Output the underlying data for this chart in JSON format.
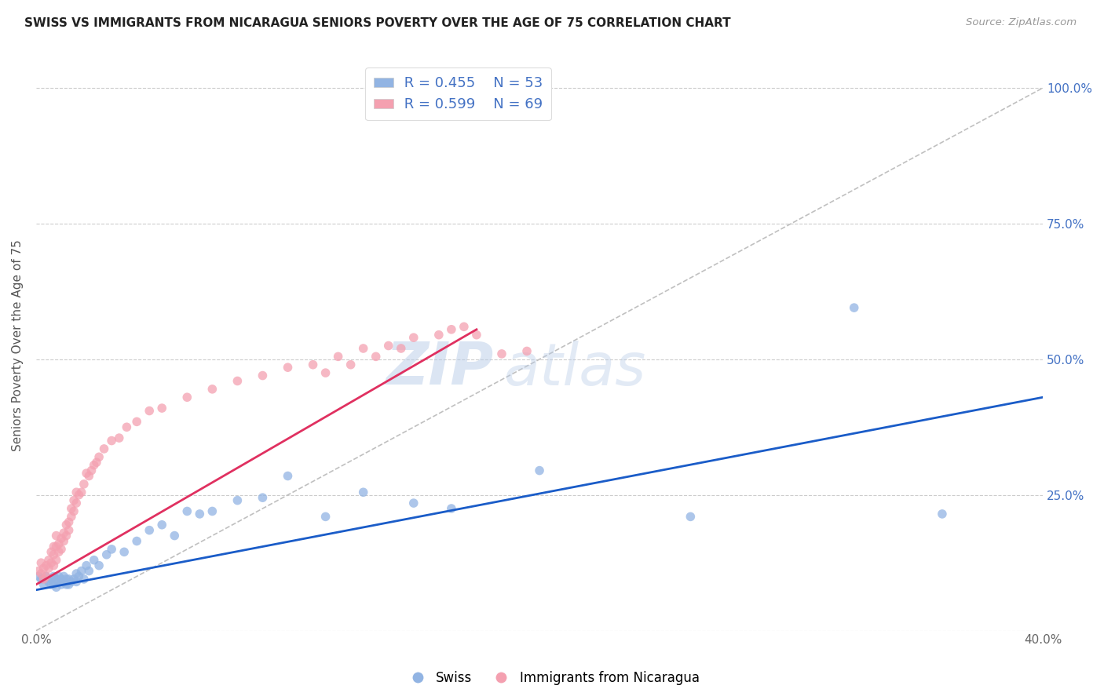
{
  "title": "SWISS VS IMMIGRANTS FROM NICARAGUA SENIORS POVERTY OVER THE AGE OF 75 CORRELATION CHART",
  "source": "Source: ZipAtlas.com",
  "ylabel": "Seniors Poverty Over the Age of 75",
  "xlim": [
    0.0,
    0.4
  ],
  "ylim": [
    0.0,
    1.05
  ],
  "xticks": [
    0.0,
    0.05,
    0.1,
    0.15,
    0.2,
    0.25,
    0.3,
    0.35,
    0.4
  ],
  "yticks": [
    0.0,
    0.25,
    0.5,
    0.75,
    1.0
  ],
  "legend_swiss_R": "R = 0.455",
  "legend_swiss_N": "N = 53",
  "legend_nic_R": "R = 0.599",
  "legend_nic_N": "N = 69",
  "swiss_color": "#92b4e3",
  "nic_color": "#f4a0b0",
  "swiss_line_color": "#1a5cc8",
  "nic_line_color": "#e03060",
  "diagonal_color": "#c0c0c0",
  "watermark_zip": "ZIP",
  "watermark_atlas": "atlas",
  "background_color": "#ffffff",
  "swiss_line_x0": 0.0,
  "swiss_line_y0": 0.075,
  "swiss_line_x1": 0.4,
  "swiss_line_y1": 0.43,
  "nic_line_x0": 0.0,
  "nic_line_y0": 0.085,
  "nic_line_x1": 0.175,
  "nic_line_y1": 0.555,
  "swiss_x": [
    0.001,
    0.002,
    0.003,
    0.004,
    0.005,
    0.006,
    0.006,
    0.007,
    0.007,
    0.008,
    0.008,
    0.009,
    0.009,
    0.01,
    0.01,
    0.011,
    0.011,
    0.012,
    0.012,
    0.013,
    0.013,
    0.014,
    0.015,
    0.016,
    0.016,
    0.017,
    0.018,
    0.019,
    0.02,
    0.021,
    0.023,
    0.025,
    0.028,
    0.03,
    0.035,
    0.04,
    0.045,
    0.05,
    0.055,
    0.06,
    0.065,
    0.07,
    0.08,
    0.09,
    0.1,
    0.115,
    0.13,
    0.15,
    0.165,
    0.2,
    0.26,
    0.325,
    0.36
  ],
  "swiss_y": [
    0.1,
    0.095,
    0.085,
    0.1,
    0.09,
    0.095,
    0.085,
    0.085,
    0.1,
    0.095,
    0.08,
    0.09,
    0.1,
    0.095,
    0.085,
    0.1,
    0.09,
    0.095,
    0.085,
    0.095,
    0.085,
    0.09,
    0.095,
    0.105,
    0.09,
    0.1,
    0.11,
    0.095,
    0.12,
    0.11,
    0.13,
    0.12,
    0.14,
    0.15,
    0.145,
    0.165,
    0.185,
    0.195,
    0.175,
    0.22,
    0.215,
    0.22,
    0.24,
    0.245,
    0.285,
    0.21,
    0.255,
    0.235,
    0.225,
    0.295,
    0.21,
    0.595,
    0.215
  ],
  "nic_x": [
    0.001,
    0.002,
    0.002,
    0.003,
    0.003,
    0.004,
    0.004,
    0.005,
    0.005,
    0.006,
    0.006,
    0.007,
    0.007,
    0.007,
    0.008,
    0.008,
    0.008,
    0.009,
    0.009,
    0.01,
    0.01,
    0.011,
    0.011,
    0.012,
    0.012,
    0.013,
    0.013,
    0.014,
    0.014,
    0.015,
    0.015,
    0.016,
    0.016,
    0.017,
    0.018,
    0.019,
    0.02,
    0.021,
    0.022,
    0.023,
    0.024,
    0.025,
    0.027,
    0.03,
    0.033,
    0.036,
    0.04,
    0.045,
    0.05,
    0.06,
    0.07,
    0.08,
    0.09,
    0.1,
    0.11,
    0.12,
    0.13,
    0.14,
    0.15,
    0.16,
    0.165,
    0.17,
    0.175,
    0.115,
    0.125,
    0.135,
    0.145,
    0.185,
    0.195
  ],
  "nic_y": [
    0.11,
    0.105,
    0.125,
    0.095,
    0.115,
    0.12,
    0.1,
    0.13,
    0.115,
    0.125,
    0.145,
    0.12,
    0.14,
    0.155,
    0.13,
    0.155,
    0.175,
    0.145,
    0.16,
    0.15,
    0.17,
    0.165,
    0.18,
    0.175,
    0.195,
    0.2,
    0.185,
    0.21,
    0.225,
    0.22,
    0.24,
    0.235,
    0.255,
    0.25,
    0.255,
    0.27,
    0.29,
    0.285,
    0.295,
    0.305,
    0.31,
    0.32,
    0.335,
    0.35,
    0.355,
    0.375,
    0.385,
    0.405,
    0.41,
    0.43,
    0.445,
    0.46,
    0.47,
    0.485,
    0.49,
    0.505,
    0.52,
    0.525,
    0.54,
    0.545,
    0.555,
    0.56,
    0.545,
    0.475,
    0.49,
    0.505,
    0.52,
    0.51,
    0.515
  ]
}
